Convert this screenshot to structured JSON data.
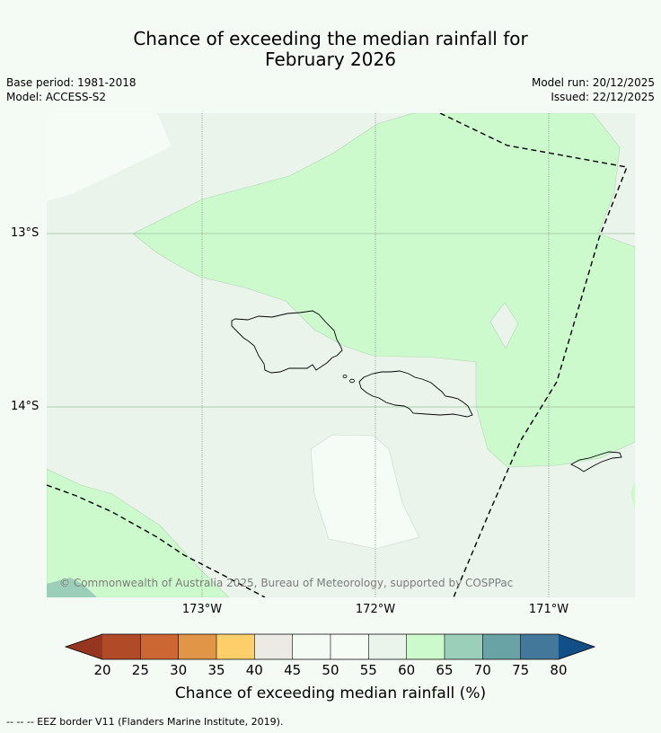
{
  "title": {
    "line1": "Chance of exceeding the median rainfall for",
    "line2": "February 2026"
  },
  "meta": {
    "base_period": "Base period: 1981-2018",
    "model": "Model: ACCESS-S2",
    "model_run": "Model run: 20/12/2025",
    "issued": "Issued: 22/12/2025"
  },
  "map": {
    "lat_labels": [
      "13°S",
      "14°S"
    ],
    "lon_labels": [
      "173°W",
      "172°W",
      "171°W"
    ],
    "copyright": "© Commonwealth of Australia 2025, Bureau of Meteorology, supported by COSPPac"
  },
  "colorbar": {
    "title": "Chance of exceeding median rainfall (%)",
    "labels": [
      "20",
      "25",
      "30",
      "35",
      "40",
      "45",
      "50",
      "55",
      "60",
      "65",
      "70",
      "75",
      "80"
    ],
    "colors": [
      "#b04a27",
      "#cc6632",
      "#e19547",
      "#fdcf6b",
      "#ebeae4",
      "#f4faf4",
      "#f5fbf5",
      "#eaf4ea",
      "#ccfacc",
      "#9ccfba",
      "#6aa3a5",
      "#43789b"
    ],
    "low_extend_color": "#973620",
    "high_extend_color": "#124f89"
  },
  "footnote": "--  --  -- EEZ border V11 (Flanders Marine Institute, 2019)."
}
